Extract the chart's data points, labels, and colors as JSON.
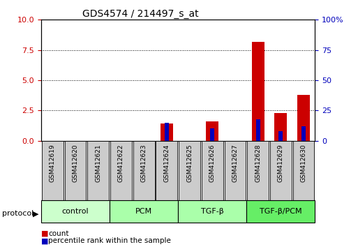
{
  "title": "GDS4574 / 214497_s_at",
  "samples": [
    "GSM412619",
    "GSM412620",
    "GSM412621",
    "GSM412622",
    "GSM412623",
    "GSM412624",
    "GSM412625",
    "GSM412626",
    "GSM412627",
    "GSM412628",
    "GSM412629",
    "GSM412630"
  ],
  "count_values": [
    0,
    0,
    0,
    0,
    0,
    1.4,
    0,
    1.6,
    0,
    8.2,
    2.3,
    3.8
  ],
  "percentile_values": [
    0,
    0,
    0,
    0,
    0,
    15,
    0,
    10,
    0,
    18,
    8,
    12
  ],
  "groups": [
    {
      "label": "control",
      "start": 0,
      "end": 3,
      "color": "#ccffcc"
    },
    {
      "label": "PCM",
      "start": 3,
      "end": 6,
      "color": "#aaffaa"
    },
    {
      "label": "TGF-β",
      "start": 6,
      "end": 9,
      "color": "#aaffaa"
    },
    {
      "label": "TGF-β/PCM",
      "start": 9,
      "end": 12,
      "color": "#66ee66"
    }
  ],
  "ylim_left": [
    0,
    10
  ],
  "ylim_right": [
    0,
    100
  ],
  "yticks_left": [
    0,
    2.5,
    5,
    7.5,
    10
  ],
  "yticks_right": [
    0,
    25,
    50,
    75,
    100
  ],
  "red_color": "#cc0000",
  "blue_color": "#0000bb",
  "grid_color": "#000000",
  "bg_color": "#ffffff",
  "tick_label_color_left": "#cc0000",
  "tick_label_color_right": "#0000bb",
  "label_bg_color": "#cccccc",
  "group_border_color": "#000000",
  "protocol_label": "protocol",
  "legend_count": "count",
  "legend_percentile": "percentile rank within the sample"
}
